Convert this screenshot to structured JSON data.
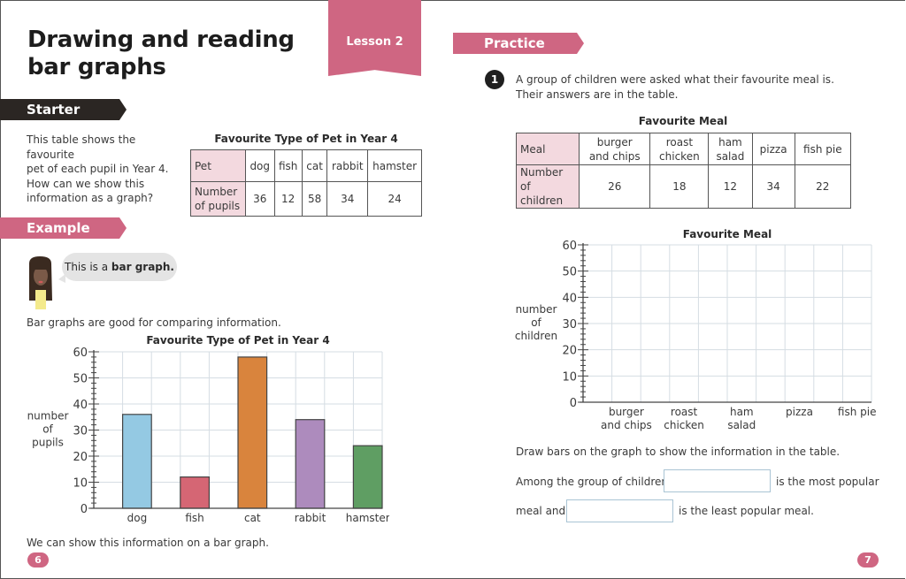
{
  "left_page": {
    "title_line1": "Drawing and reading",
    "title_line2": "bar graphs",
    "lesson_ribbon": "Lesson 2",
    "starter_banner": "Starter",
    "starter_text": [
      "This table shows the favourite",
      "pet of each pupil in Year 4.",
      "How can we show this",
      "information as a graph?"
    ],
    "pet_table": {
      "title": "Favourite Type of Pet in Year 4",
      "row1_header": "Pet",
      "row2_header_line1": "Number",
      "row2_header_line2": "of pupils",
      "columns": [
        "dog",
        "fish",
        "cat",
        "rabbit",
        "hamster"
      ],
      "values": [
        "36",
        "12",
        "58",
        "34",
        "24"
      ]
    },
    "example_banner": "Example",
    "speech_bubble_plain": "This is a ",
    "speech_bubble_bold": "bar graph.",
    "example_text": "Bar graphs are good for comparing information.",
    "footer_text": "We can show this information on a bar graph.",
    "page_number": "6"
  },
  "right_page": {
    "practice_banner": "Practice",
    "question_number": "1",
    "question_line1": "A group of children were asked what their favourite meal is.",
    "question_line2": "Their answers are in the table.",
    "meal_table": {
      "title": "Favourite Meal",
      "row1_header": "Meal",
      "row2_header_line1": "Number of",
      "row2_header_line2": "children",
      "columns": [
        [
          "burger",
          "and chips"
        ],
        [
          "roast",
          "chicken"
        ],
        [
          "ham",
          "salad"
        ],
        [
          "pizza",
          ""
        ],
        [
          "fish pie",
          ""
        ]
      ],
      "values": [
        "26",
        "18",
        "12",
        "34",
        "22"
      ]
    },
    "instruction": "Draw bars on the graph to show the information in the table.",
    "sentence1_before": "Among the group of children,",
    "sentence1_after": "is the most popular",
    "sentence2_before": "meal and",
    "sentence2_after": "is the least popular meal.",
    "answer_most_popular": "",
    "answer_least_popular": "",
    "page_number": "7"
  },
  "chart_data": [
    {
      "type": "bar",
      "title": "Favourite Type of Pet in Year 4",
      "categories": [
        "dog",
        "fish",
        "cat",
        "rabbit",
        "hamster"
      ],
      "values": [
        36,
        12,
        58,
        34,
        24
      ],
      "colors": [
        "#94c9e3",
        "#d56674",
        "#d9843d",
        "#ad8bbd",
        "#5f9e63"
      ],
      "xlabel": "",
      "ylabel": "number of pupils",
      "ylim": [
        0,
        60
      ],
      "yticks": [
        "0",
        "10",
        "20",
        "30",
        "40",
        "50",
        "60"
      ],
      "grid": true
    },
    {
      "type": "bar",
      "title": "Favourite Meal",
      "categories": [
        "burger and chips",
        "roast chicken",
        "ham salad",
        "pizza",
        "fish pie"
      ],
      "category_lines": [
        [
          "burger",
          "and chips"
        ],
        [
          "roast",
          "chicken"
        ],
        [
          "ham",
          "salad"
        ],
        [
          "pizza",
          ""
        ],
        [
          "fish pie",
          ""
        ]
      ],
      "values": [],
      "xlabel": "",
      "ylabel": "number of children",
      "ylim": [
        0,
        60
      ],
      "yticks": [
        "0",
        "10",
        "20",
        "30",
        "40",
        "50",
        "60"
      ],
      "grid": true
    }
  ]
}
